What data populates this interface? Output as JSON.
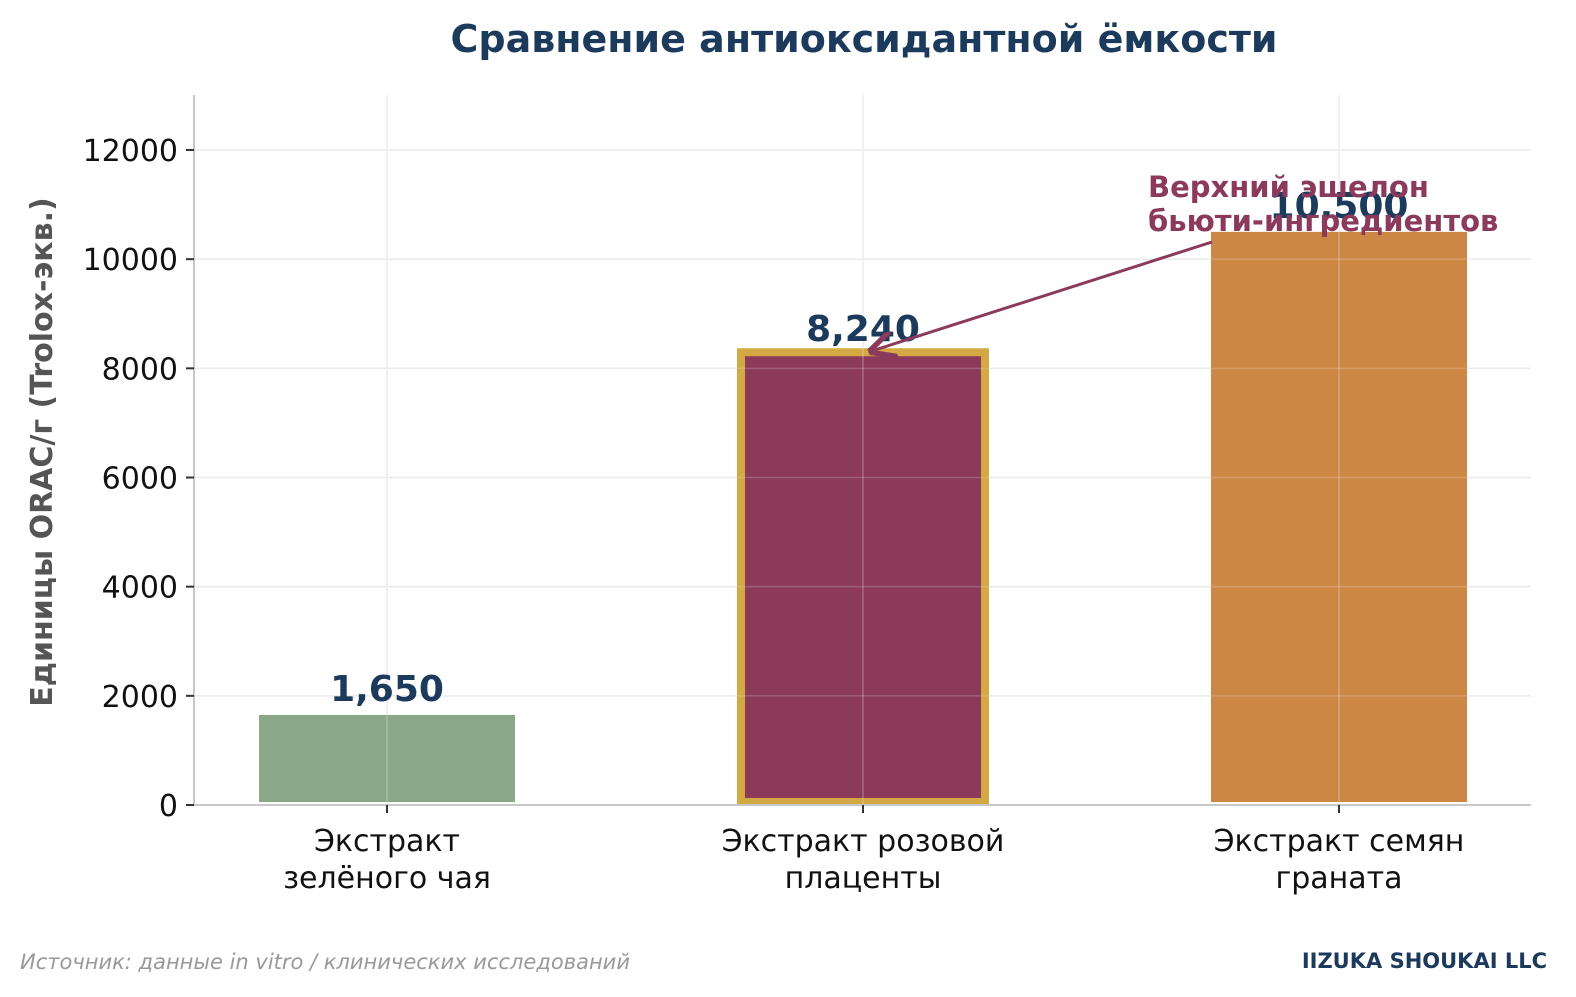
{
  "chart_data": {
    "type": "bar",
    "title": "Сравнение антиоксидантной ёмкости",
    "ylabel": "Единицы ORAC/г (Trolox-экв.)",
    "xlabel": "",
    "ylim": [
      0,
      13000
    ],
    "yticks": [
      0,
      2000,
      4000,
      6000,
      8000,
      10000,
      12000
    ],
    "grid": true,
    "categories": [
      [
        "Экстракт",
        "зелёного чая"
      ],
      [
        "Экстракт розовой",
        "плаценты"
      ],
      [
        "Экстракт семян",
        "граната"
      ]
    ],
    "values": [
      1650,
      8240,
      10500
    ],
    "value_labels": [
      "1,650",
      "8,240",
      "10,500"
    ],
    "bar_colors": [
      "#8aa888",
      "#8b3a5a",
      "#cd8745"
    ],
    "highlight": {
      "index": 1,
      "edge_color": "#d4a843"
    },
    "annotation": {
      "lines": [
        "Верхний эшелон",
        "бьюти-ингредиентов"
      ],
      "color": "#8b3a5c",
      "points_to_index": 1
    }
  },
  "footer": {
    "source": "Источник: данные in vitro / клинических исследований",
    "brand": "IIZUKA SHOUKAI LLC"
  }
}
